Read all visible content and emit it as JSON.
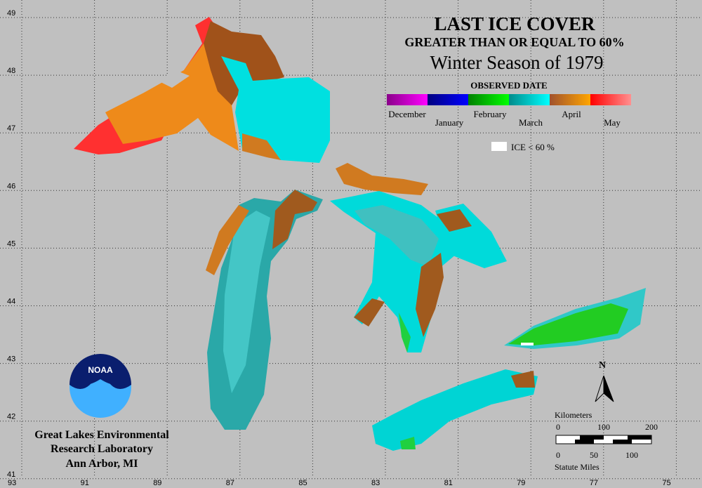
{
  "title": "LAST ICE COVER",
  "subtitle": "GREATER THAN OR EQUAL TO 60%",
  "season": "Winter Season of 1979",
  "legend": {
    "heading": "OBSERVED DATE",
    "months": [
      {
        "label": "December",
        "colors": [
          "#8a008a",
          "#ff00ff"
        ]
      },
      {
        "label": "January",
        "colors": [
          "#000080",
          "#0000ff"
        ]
      },
      {
        "label": "February",
        "colors": [
          "#008000",
          "#00ff00"
        ]
      },
      {
        "label": "March",
        "colors": [
          "#008b8b",
          "#00ffff"
        ]
      },
      {
        "label": "April",
        "colors": [
          "#a0522d",
          "#ffa500"
        ]
      },
      {
        "label": "May",
        "colors": [
          "#ff0000",
          "#ff9090"
        ]
      }
    ],
    "low_ice": "ICE < 60 %"
  },
  "grid": {
    "latitudes": [
      49,
      48,
      47,
      46,
      45,
      44,
      43,
      42,
      41
    ],
    "longitudes": [
      93,
      91,
      89,
      87,
      85,
      83,
      81,
      79,
      77,
      75
    ]
  },
  "scale": {
    "km_label": "Kilometers",
    "km_ticks": [
      0,
      100,
      200
    ],
    "mi_label": "Statute Miles",
    "mi_ticks": [
      0,
      50,
      100
    ]
  },
  "compass": "N",
  "logo": "NOAA",
  "credits": [
    "Great Lakes Environmental",
    "Research Laboratory",
    "Ann Arbor, MI"
  ]
}
